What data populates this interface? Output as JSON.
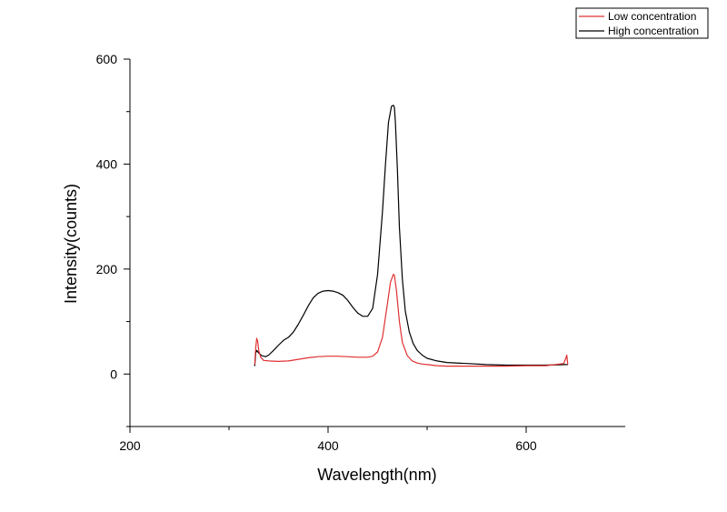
{
  "chart_data": {
    "type": "line",
    "title": "",
    "xlabel": "Wavelength(nm)",
    "ylabel": "Intensity(counts)",
    "xlim": [
      200,
      700
    ],
    "ylim": [
      -100,
      600
    ],
    "x_ticks": [
      200,
      400,
      600
    ],
    "y_ticks": [
      0,
      200,
      400,
      600
    ],
    "grid": false,
    "legend_position": "top-right",
    "series": [
      {
        "name": "Low concentration",
        "color": "#e03030",
        "x": [
          326,
          327,
          328,
          329,
          330,
          332,
          335,
          340,
          350,
          360,
          370,
          380,
          390,
          400,
          410,
          420,
          430,
          440,
          445,
          450,
          455,
          460,
          463,
          466,
          467,
          469,
          472,
          475,
          480,
          485,
          490,
          495,
          500,
          510,
          520,
          540,
          560,
          580,
          600,
          620,
          638,
          640,
          641,
          642
        ],
        "y": [
          18,
          50,
          68,
          62,
          45,
          32,
          26,
          25,
          24,
          25,
          28,
          31,
          33,
          34,
          34,
          33,
          32,
          32,
          34,
          42,
          70,
          135,
          175,
          190,
          188,
          160,
          100,
          60,
          35,
          25,
          21,
          19,
          18,
          16,
          15,
          15,
          15,
          15,
          16,
          16,
          20,
          30,
          36,
          18
        ]
      },
      {
        "name": "High concentration",
        "color": "#000000",
        "x": [
          326,
          327,
          328,
          330,
          333,
          337,
          340,
          345,
          350,
          355,
          360,
          365,
          370,
          375,
          380,
          385,
          390,
          395,
          400,
          405,
          410,
          415,
          420,
          425,
          430,
          435,
          440,
          445,
          450,
          455,
          458,
          461,
          464,
          466,
          467,
          468,
          470,
          472,
          475,
          478,
          482,
          486,
          490,
          495,
          500,
          510,
          520,
          540,
          560,
          580,
          600,
          620,
          640,
          642
        ],
        "y": [
          15,
          40,
          45,
          40,
          35,
          33,
          36,
          45,
          55,
          64,
          70,
          80,
          95,
          112,
          130,
          145,
          154,
          158,
          159,
          158,
          155,
          150,
          140,
          127,
          116,
          110,
          110,
          125,
          190,
          310,
          400,
          480,
          510,
          512,
          508,
          480,
          390,
          280,
          180,
          120,
          80,
          58,
          45,
          36,
          30,
          25,
          22,
          20,
          18,
          17,
          17,
          17,
          18,
          18
        ]
      }
    ]
  }
}
